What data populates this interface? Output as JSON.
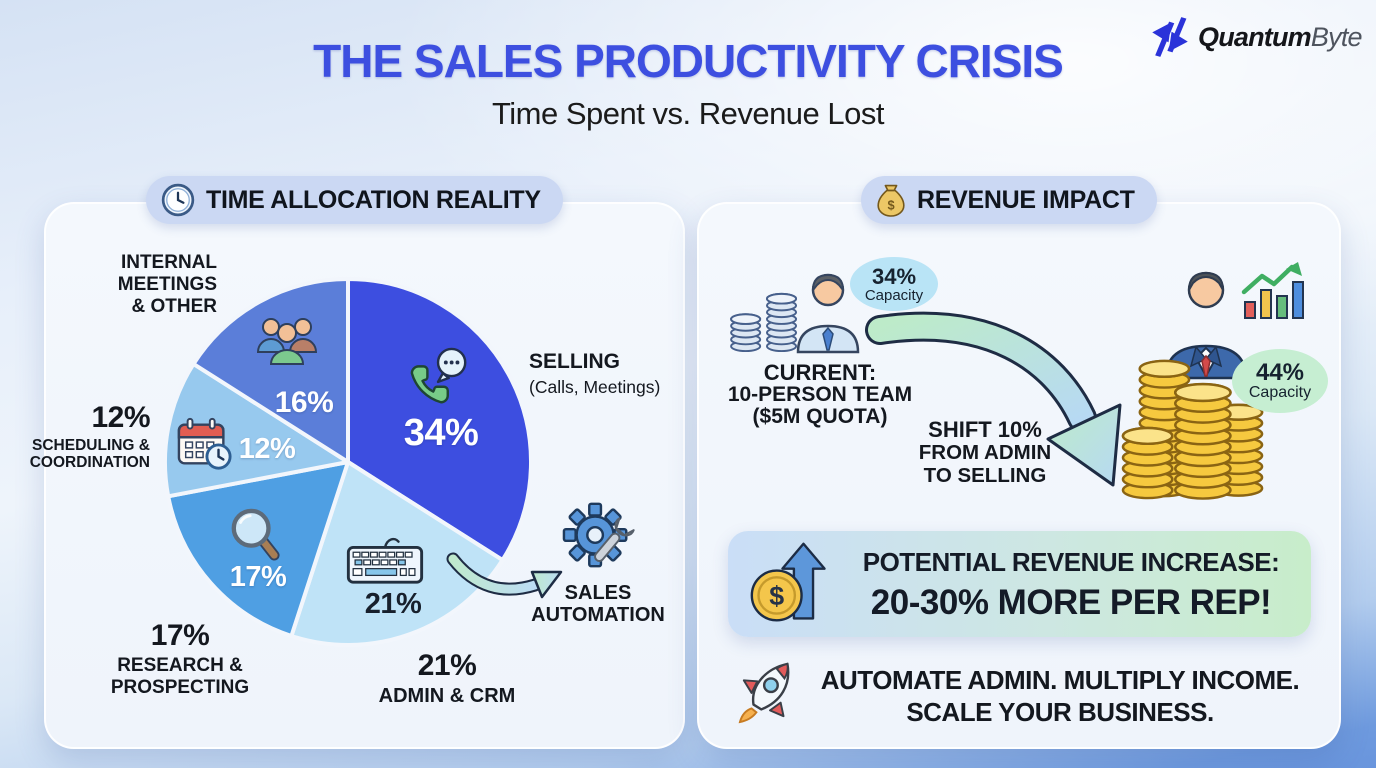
{
  "header": {
    "title": "THE SALES PRODUCTIVITY CRISIS",
    "subtitle": "Time Spent vs. Revenue Lost",
    "brand": {
      "name_bold": "Quantum",
      "name_light": "Byte"
    }
  },
  "left_panel": {
    "header": "TIME ALLOCATION REALITY",
    "header_icon": "clock-icon",
    "automation_label_lines": [
      "SALES",
      "AUTOMATION"
    ]
  },
  "right_panel": {
    "header": "REVENUE IMPACT",
    "header_icon": "money-bag-icon",
    "current_capacity": {
      "value": "34%",
      "label": "Capacity"
    },
    "current_lines": [
      "CURRENT:",
      "10-PERSON TEAM",
      "($5M QUOTA)"
    ],
    "shift_lines": [
      "SHIFT 10%",
      "FROM ADMIN",
      "TO SELLING"
    ],
    "future_capacity": {
      "value": "44%",
      "label": "Capacity"
    },
    "banner": {
      "line1": "POTENTIAL REVENUE INCREASE:",
      "line2": "20-30% MORE PER REP!"
    },
    "tagline_lines": [
      "AUTOMATE ADMIN. MULTIPLY INCOME.",
      "SCALE YOUR BUSINESS."
    ]
  },
  "chart_data": {
    "type": "pie",
    "title": "TIME ALLOCATION REALITY",
    "unit": "%",
    "start_angle_deg": -90,
    "direction": "clockwise",
    "slices": [
      {
        "name": "selling",
        "value": 34,
        "pct": "34%",
        "color": "#3d4ee0",
        "value_label_color": "#ffffff",
        "icon": "phone-chat-icon",
        "callout_lines": [
          "SELLING",
          "(Calls, Meetings)"
        ]
      },
      {
        "name": "admin-crm",
        "value": 21,
        "pct": "21%",
        "color": "#bfe3f7",
        "value_label_color": "#17202c",
        "icon": "keyboard-icon",
        "callout_pct": "21%",
        "callout_lines": [
          "ADMIN & CRM"
        ]
      },
      {
        "name": "research-prospecting",
        "value": 17,
        "pct": "17%",
        "color": "#4f9fe3",
        "value_label_color": "#ffffff",
        "icon": "magnifier-icon",
        "callout_pct": "17%",
        "callout_lines": [
          "RESEARCH &",
          "PROSPECTING"
        ]
      },
      {
        "name": "scheduling-coordination",
        "value": 12,
        "pct": "12%",
        "color": "#97c9ee",
        "value_label_color": "#ffffff",
        "icon": "calendar-clock-icon",
        "callout_pct": "12%",
        "callout_lines": [
          "SCHEDULING &",
          "COORDINATION"
        ]
      },
      {
        "name": "internal-meetings-other",
        "value": 16,
        "pct": "16%",
        "color": "#5b7ed9",
        "value_label_color": "#ffffff",
        "icon": "people-icon",
        "callout_lines": [
          "INTERNAL",
          "MEETINGS",
          "& OTHER"
        ]
      }
    ]
  },
  "icons": {
    "dollar_sign": "$",
    "automation_icon": "gear-wrench-icon",
    "growth_icon": "bar-chart-growth-icon",
    "tagline_icon": "rocket-icon",
    "banner_icon": "coin-up-arrow-icon"
  },
  "colors": {
    "title_blue": "#3d4fe0",
    "pill_bg": "#cbd8f3",
    "card_bg": "#f3f7fd",
    "capacity_current_bubble": "#b9e4f6",
    "capacity_future_bubble": "#c6eed2",
    "banner_gradient_start": "#cadef7",
    "banner_gradient_end": "#c8edca",
    "page_bottom_blue": "#6995dd"
  }
}
